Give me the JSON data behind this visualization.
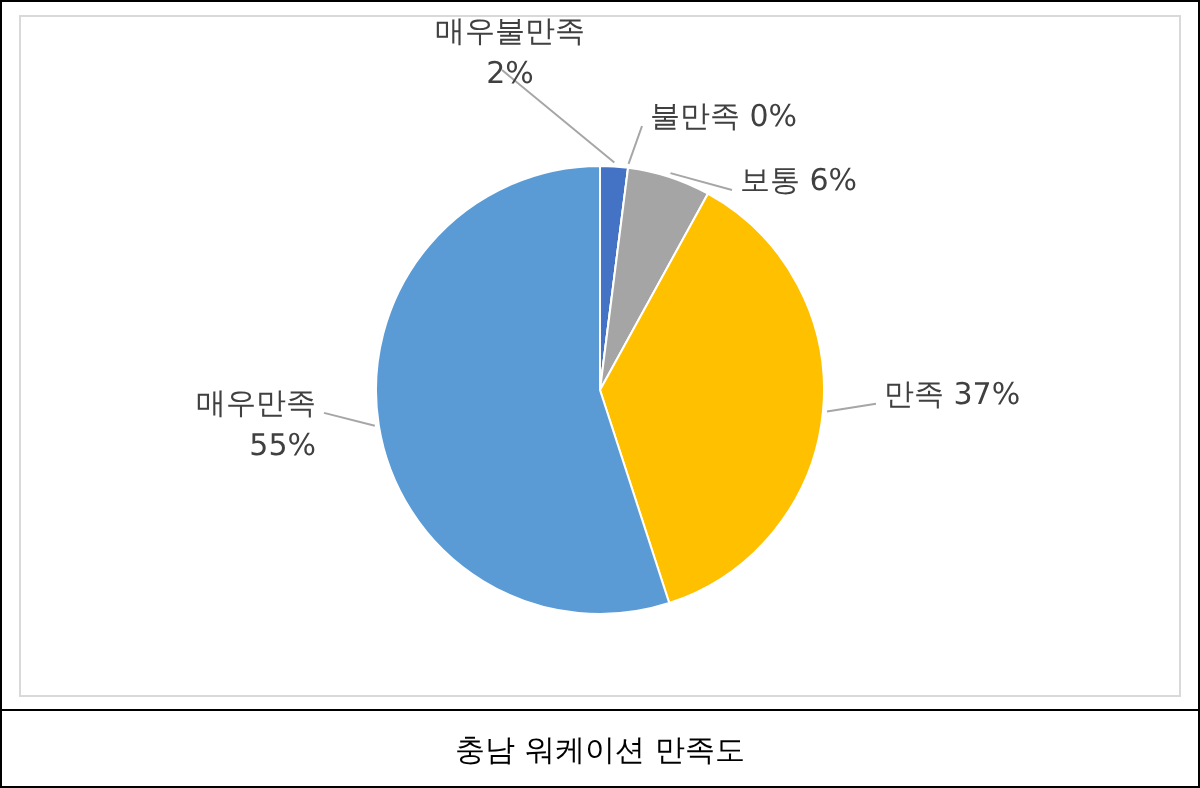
{
  "chart_data": {
    "type": "pie",
    "title": "충남 워케이션 만족도",
    "categories": [
      "매우불만족",
      "불만족",
      "보통",
      "만족",
      "매우만족"
    ],
    "values": [
      2,
      0,
      6,
      37,
      55
    ],
    "value_labels": [
      "2%",
      "0%",
      "6%",
      "37%",
      "55%"
    ],
    "colors": [
      "#4472c4",
      "#ed7d31",
      "#a5a5a5",
      "#ffc000",
      "#5b9bd5"
    ]
  }
}
